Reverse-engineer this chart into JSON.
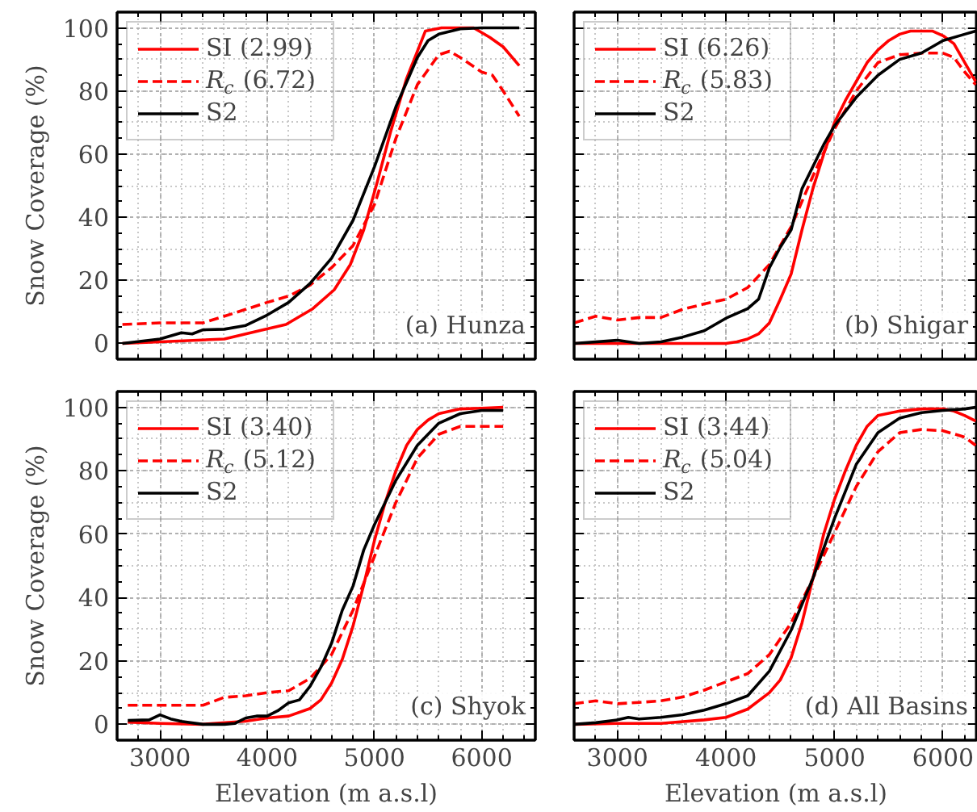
{
  "chart_data": [
    {
      "type": "line",
      "ylabel": "Snow Coverage (%)",
      "xlim": [
        2600,
        6500
      ],
      "ylim": [
        -5,
        105
      ],
      "xticks": [
        3000,
        4000,
        5000,
        6000
      ],
      "yticks": [
        0,
        20,
        40,
        60,
        80,
        100
      ],
      "grid": true,
      "legend": "top left",
      "tick_labels": "y",
      "annotations": [
        "(a) Hunza"
      ],
      "series": [
        {
          "name": "SI (2.99)",
          "color": "#ff0000",
          "line_style": "solid",
          "x": [
            2650,
            3000,
            3600,
            3925,
            4175,
            4425,
            4625,
            4775,
            4900,
            5025,
            5150,
            5300,
            5475,
            5625,
            5925,
            6075,
            6200,
            6350
          ],
          "values": [
            0,
            0.5,
            1.4,
            4,
            6,
            11,
            17,
            25,
            36,
            51,
            67,
            84,
            99,
            100,
            100,
            97,
            94,
            88
          ]
        },
        {
          "name": "R$_{c}$ (6.72)",
          "color": "#ff0000",
          "line_style": "dashed",
          "x": [
            2650,
            3000,
            3400,
            3600,
            4000,
            4200,
            4400,
            4600,
            4800,
            5000,
            5200,
            5400,
            5600,
            5700,
            5800,
            6000,
            6100,
            6200,
            6350
          ],
          "values": [
            6,
            6.5,
            6.5,
            8.6,
            13,
            15,
            18.5,
            24,
            31,
            44,
            65,
            82,
            91.5,
            92.6,
            90.6,
            86,
            85,
            80,
            72
          ]
        },
        {
          "name": "S2",
          "color": "#000000",
          "line_style": "solid",
          "x": [
            2650,
            3000,
            3200,
            3300,
            3400,
            3600,
            3800,
            4000,
            4200,
            4400,
            4600,
            4800,
            5000,
            5200,
            5400,
            5500,
            5600,
            5800,
            6000,
            6200,
            6350
          ],
          "values": [
            0,
            1.4,
            3.4,
            3,
            4.3,
            4.5,
            5.7,
            9,
            13,
            19,
            27,
            39,
            56,
            75,
            90.6,
            96,
            98,
            99.7,
            100,
            100,
            100
          ]
        }
      ]
    },
    {
      "type": "line",
      "xlim": [
        2600,
        6320
      ],
      "ylim": [
        -5,
        105
      ],
      "xticks": [
        3000,
        4000,
        5000,
        6000
      ],
      "yticks": [
        0,
        20,
        40,
        60,
        80,
        100
      ],
      "grid": true,
      "legend": "top left",
      "tick_labels": false,
      "annotations": [
        "(b) Shigar"
      ],
      "series": [
        {
          "name": "SI (6.26)",
          "color": "#ff0000",
          "line_style": "solid",
          "x": [
            2600,
            3000,
            3500,
            4000,
            4100,
            4200,
            4300,
            4400,
            4500,
            4600,
            4700,
            4800,
            4900,
            5000,
            5100,
            5200,
            5300,
            5400,
            5500,
            5600,
            5700,
            5800,
            5900,
            6000,
            6100,
            6200,
            6300
          ],
          "values": [
            0,
            0,
            0,
            0,
            0.5,
            1.4,
            3,
            6.5,
            14,
            22,
            36,
            49,
            60,
            70,
            77,
            83,
            89,
            93,
            96,
            98,
            99,
            99,
            99,
            97.5,
            95,
            89,
            83
          ]
        },
        {
          "name": "R$_{c}$ (5.83)",
          "color": "#ff0000",
          "line_style": "dashed",
          "x": [
            2600,
            2800,
            3000,
            3200,
            3400,
            3600,
            3800,
            4000,
            4200,
            4400,
            4600,
            4800,
            5000,
            5200,
            5400,
            5600,
            5800,
            6000,
            6100,
            6200,
            6300
          ],
          "values": [
            6.5,
            8.6,
            7.4,
            8.2,
            8.2,
            10.8,
            12.5,
            14,
            17.7,
            25,
            37,
            53,
            68,
            80,
            89,
            91.5,
            92,
            92,
            90.6,
            86,
            82
          ]
        },
        {
          "name": "S2",
          "color": "#000000",
          "line_style": "solid",
          "x": [
            2600,
            3000,
            3200,
            3400,
            3600,
            3800,
            4000,
            4200,
            4300,
            4400,
            4500,
            4600,
            4700,
            4800,
            4900,
            5000,
            5200,
            5400,
            5600,
            5800,
            6000,
            6200,
            6300
          ],
          "values": [
            0,
            1,
            0,
            0.5,
            2,
            4,
            8,
            11,
            14,
            24,
            30.5,
            36,
            49,
            56,
            63,
            69,
            78,
            85,
            90,
            92,
            96,
            98,
            99
          ]
        }
      ]
    },
    {
      "type": "line",
      "xlabel": "Elevation (m a.s.l)",
      "ylabel": "Snow Coverage (%)",
      "xlim": [
        2600,
        6500
      ],
      "ylim": [
        -5,
        105
      ],
      "xticks": [
        3000,
        4000,
        5000,
        6000
      ],
      "yticks": [
        0,
        20,
        40,
        60,
        80,
        100
      ],
      "grid": true,
      "legend": "top left",
      "annotations": [
        "(c) Shyok"
      ],
      "series": [
        {
          "name": "SI (3.40)",
          "color": "#ff0000",
          "line_style": "solid",
          "x": [
            2700,
            3000,
            3400,
            3800,
            4000,
            4200,
            4400,
            4500,
            4600,
            4700,
            4800,
            4900,
            5000,
            5100,
            5200,
            5300,
            5400,
            5500,
            5600,
            5800,
            6000,
            6200
          ],
          "values": [
            0.7,
            0.3,
            0,
            1,
            2,
            2.6,
            5,
            7.7,
            13,
            20.5,
            31,
            44,
            58,
            70,
            80,
            88,
            93,
            96,
            98,
            99.5,
            99.7,
            100
          ]
        },
        {
          "name": "R$_{c}$ (5.12)",
          "color": "#ff0000",
          "line_style": "dashed",
          "x": [
            2700,
            3000,
            3200,
            3400,
            3600,
            3800,
            4000,
            4200,
            4400,
            4600,
            4800,
            5000,
            5200,
            5400,
            5600,
            5800,
            6000,
            6200
          ],
          "values": [
            6,
            6,
            6,
            6,
            8.5,
            9,
            10,
            10.6,
            14.5,
            22,
            36,
            53,
            70,
            84,
            91.5,
            94,
            94,
            94
          ]
        },
        {
          "name": "S2",
          "color": "#000000",
          "line_style": "solid",
          "x": [
            2700,
            2900,
            3000,
            3100,
            3200,
            3400,
            3600,
            3700,
            3800,
            3900,
            4000,
            4100,
            4200,
            4300,
            4400,
            4500,
            4600,
            4700,
            4800,
            4900,
            5000,
            5200,
            5400,
            5600,
            5800,
            6000,
            6200
          ],
          "values": [
            1.2,
            1.4,
            3,
            1.7,
            0.9,
            0,
            0,
            0.3,
            2,
            2.6,
            2.6,
            4.3,
            6.8,
            7.7,
            12,
            18,
            25.6,
            36,
            43.6,
            55,
            63,
            77,
            88,
            95,
            98,
            99,
            99
          ]
        }
      ]
    },
    {
      "type": "line",
      "xlabel": "Elevation (m a.s.l)",
      "xlim": [
        2600,
        6320
      ],
      "ylim": [
        -5,
        105
      ],
      "xticks": [
        3000,
        4000,
        5000,
        6000
      ],
      "yticks": [
        0,
        20,
        40,
        60,
        80,
        100
      ],
      "grid": true,
      "legend": "top left",
      "tick_labels": "x",
      "annotations": [
        "(d) All Basins"
      ],
      "series": [
        {
          "name": "SI (3.44)",
          "color": "#ff0000",
          "line_style": "solid",
          "x": [
            2600,
            3000,
            3400,
            3800,
            4000,
            4200,
            4400,
            4500,
            4600,
            4700,
            4800,
            4900,
            5000,
            5100,
            5200,
            5300,
            5400,
            5600,
            5800,
            6000,
            6100,
            6200,
            6300
          ],
          "values": [
            0,
            0.3,
            0.3,
            1.4,
            2.2,
            4.8,
            10,
            14,
            21,
            32,
            46,
            60,
            71,
            80,
            88,
            94,
            97.4,
            98.8,
            99.5,
            99.5,
            98.8,
            97.4,
            95.7
          ]
        },
        {
          "name": "R$_{c}$ (5.04)",
          "color": "#ff0000",
          "line_style": "dashed",
          "x": [
            2600,
            2800,
            3000,
            3200,
            3400,
            3600,
            3800,
            4000,
            4200,
            4400,
            4600,
            4800,
            5000,
            5200,
            5400,
            5600,
            5800,
            6000,
            6200,
            6300
          ],
          "values": [
            6.5,
            7.4,
            6.5,
            6.9,
            7.4,
            8.6,
            10.8,
            13.4,
            16,
            22,
            32,
            46,
            60.5,
            75,
            86,
            92,
            93,
            92.6,
            90.6,
            88
          ]
        },
        {
          "name": "S2",
          "color": "#000000",
          "line_style": "solid",
          "x": [
            2600,
            2800,
            3000,
            3100,
            3200,
            3400,
            3600,
            3800,
            4000,
            4200,
            4400,
            4600,
            4800,
            5000,
            5200,
            5400,
            5600,
            5800,
            6000,
            6200,
            6300
          ],
          "values": [
            0,
            0.5,
            1.4,
            2.2,
            1.7,
            2.2,
            3,
            4.5,
            6.5,
            9,
            16.8,
            29.7,
            46,
            65,
            82,
            92,
            96.6,
            98.3,
            99,
            99.5,
            100
          ]
        }
      ]
    }
  ]
}
